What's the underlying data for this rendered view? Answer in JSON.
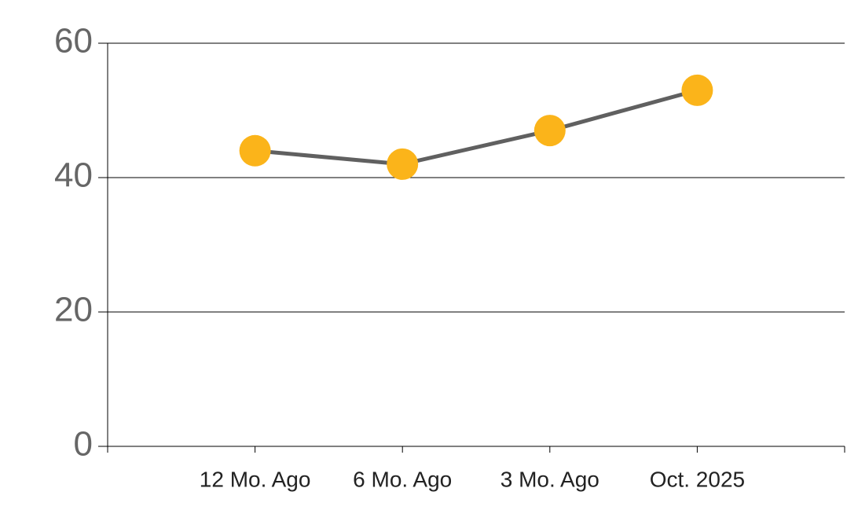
{
  "chart_data": {
    "type": "line",
    "categories": [
      "12 Mo. Ago",
      "6 Mo. Ago",
      "3 Mo. Ago",
      "Oct. 2025"
    ],
    "series": [
      {
        "values": [
          44,
          42,
          47,
          53
        ],
        "color": "#fbb41a",
        "line_color": "#606060"
      }
    ],
    "ylim": [
      0,
      60
    ],
    "yticks": [
      0,
      20,
      40,
      60
    ],
    "grid": true
  }
}
